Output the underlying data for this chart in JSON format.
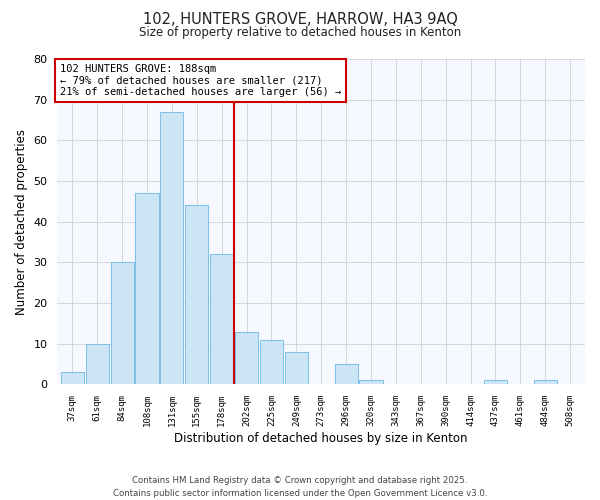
{
  "title": "102, HUNTERS GROVE, HARROW, HA3 9AQ",
  "subtitle": "Size of property relative to detached houses in Kenton",
  "xlabel": "Distribution of detached houses by size in Kenton",
  "ylabel": "Number of detached properties",
  "bin_labels": [
    "37sqm",
    "61sqm",
    "84sqm",
    "108sqm",
    "131sqm",
    "155sqm",
    "178sqm",
    "202sqm",
    "225sqm",
    "249sqm",
    "273sqm",
    "296sqm",
    "320sqm",
    "343sqm",
    "367sqm",
    "390sqm",
    "414sqm",
    "437sqm",
    "461sqm",
    "484sqm",
    "508sqm"
  ],
  "bar_values": [
    3,
    10,
    30,
    47,
    67,
    44,
    32,
    13,
    11,
    8,
    0,
    5,
    1,
    0,
    0,
    0,
    0,
    1,
    0,
    1,
    0
  ],
  "bar_color": "#cce5f5",
  "bar_edge_color": "#7bbfe8",
  "vline_x_index": 6.5,
  "vline_color": "#cc0000",
  "annotation_text": "102 HUNTERS GROVE: 188sqm\n← 79% of detached houses are smaller (217)\n21% of semi-detached houses are larger (56) →",
  "annotation_box_color": "#ffffff",
  "annotation_box_edge": "#cc0000",
  "ylim": [
    0,
    80
  ],
  "yticks": [
    0,
    10,
    20,
    30,
    40,
    50,
    60,
    70,
    80
  ],
  "grid_color": "#d0d0d0",
  "bg_color": "#ffffff",
  "plot_bg_color": "#f5f8ff",
  "footnote": "Contains HM Land Registry data © Crown copyright and database right 2025.\nContains public sector information licensed under the Open Government Licence v3.0."
}
